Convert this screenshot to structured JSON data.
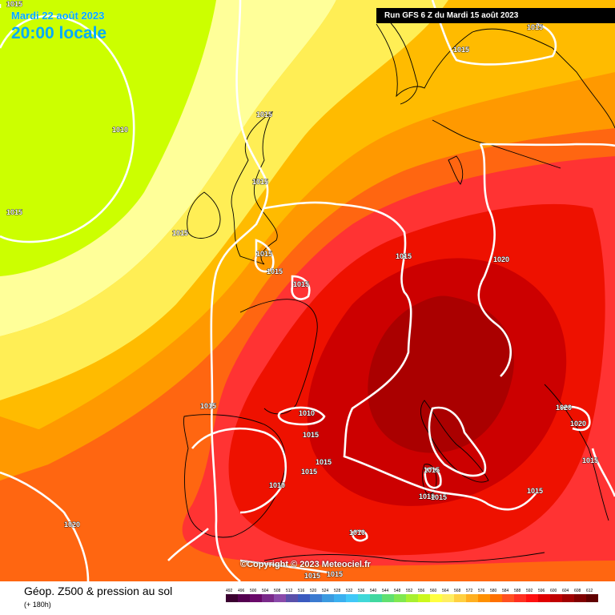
{
  "header": {
    "valid_date": "Mardi 22 août 2023",
    "valid_time": "20:00 locale",
    "run": "Run GFS 6 Z du Mardi 15 août 2023"
  },
  "map": {
    "copyright": "©Copyright © 2023 Meteociel.fr",
    "pressure_labels": [
      "1015",
      "1015",
      "1010",
      "1015",
      "1015",
      "1015",
      "1015",
      "1015",
      "1015",
      "1015",
      "1015",
      "1020",
      "1015",
      "1010",
      "1015",
      "1015",
      "1010",
      "1015",
      "1015",
      "1010",
      "1015",
      "1020",
      "1020",
      "1020",
      "1015",
      "1015",
      "1010",
      "1015",
      "1015",
      "1015"
    ],
    "colors": {
      "z500_480_500": "#ccff00",
      "z500_540": "#ffff66",
      "z500_560": "#ffcc00",
      "z500_570": "#ff9900",
      "z500_576": "#ff6600",
      "z500_584": "#ff3333",
      "z500_588": "#ee1100",
      "z500_592": "#cc0000",
      "z500_596": "#aa0000"
    }
  },
  "footer": {
    "title": "Géop. Z500 & pression au sol",
    "forecast_hour": "(+ 180h)",
    "scale": {
      "ticks": [
        "492",
        "496",
        "500",
        "504",
        "508",
        "512",
        "516",
        "520",
        "524",
        "528",
        "532",
        "536",
        "540",
        "544",
        "548",
        "552",
        "556",
        "560",
        "564",
        "568",
        "572",
        "576",
        "580",
        "584",
        "588",
        "592",
        "596",
        "600",
        "604",
        "608",
        "612"
      ],
      "colors": [
        "#3a0030",
        "#540050",
        "#6a0a6a",
        "#7a2a8a",
        "#8a4aaa",
        "#5a50aa",
        "#3a5abf",
        "#3a7ad0",
        "#3a9ae0",
        "#3ab0f0",
        "#40c8f8",
        "#40d8d8",
        "#40d8a0",
        "#60e070",
        "#80e850",
        "#a8f030",
        "#ccf81c",
        "#ffff40",
        "#ffee60",
        "#ffd040",
        "#ffb020",
        "#ff9000",
        "#ff7000",
        "#ff5020",
        "#ff3020",
        "#ff1010",
        "#e00000",
        "#c00000",
        "#a00000",
        "#800000",
        "#600000"
      ]
    }
  }
}
